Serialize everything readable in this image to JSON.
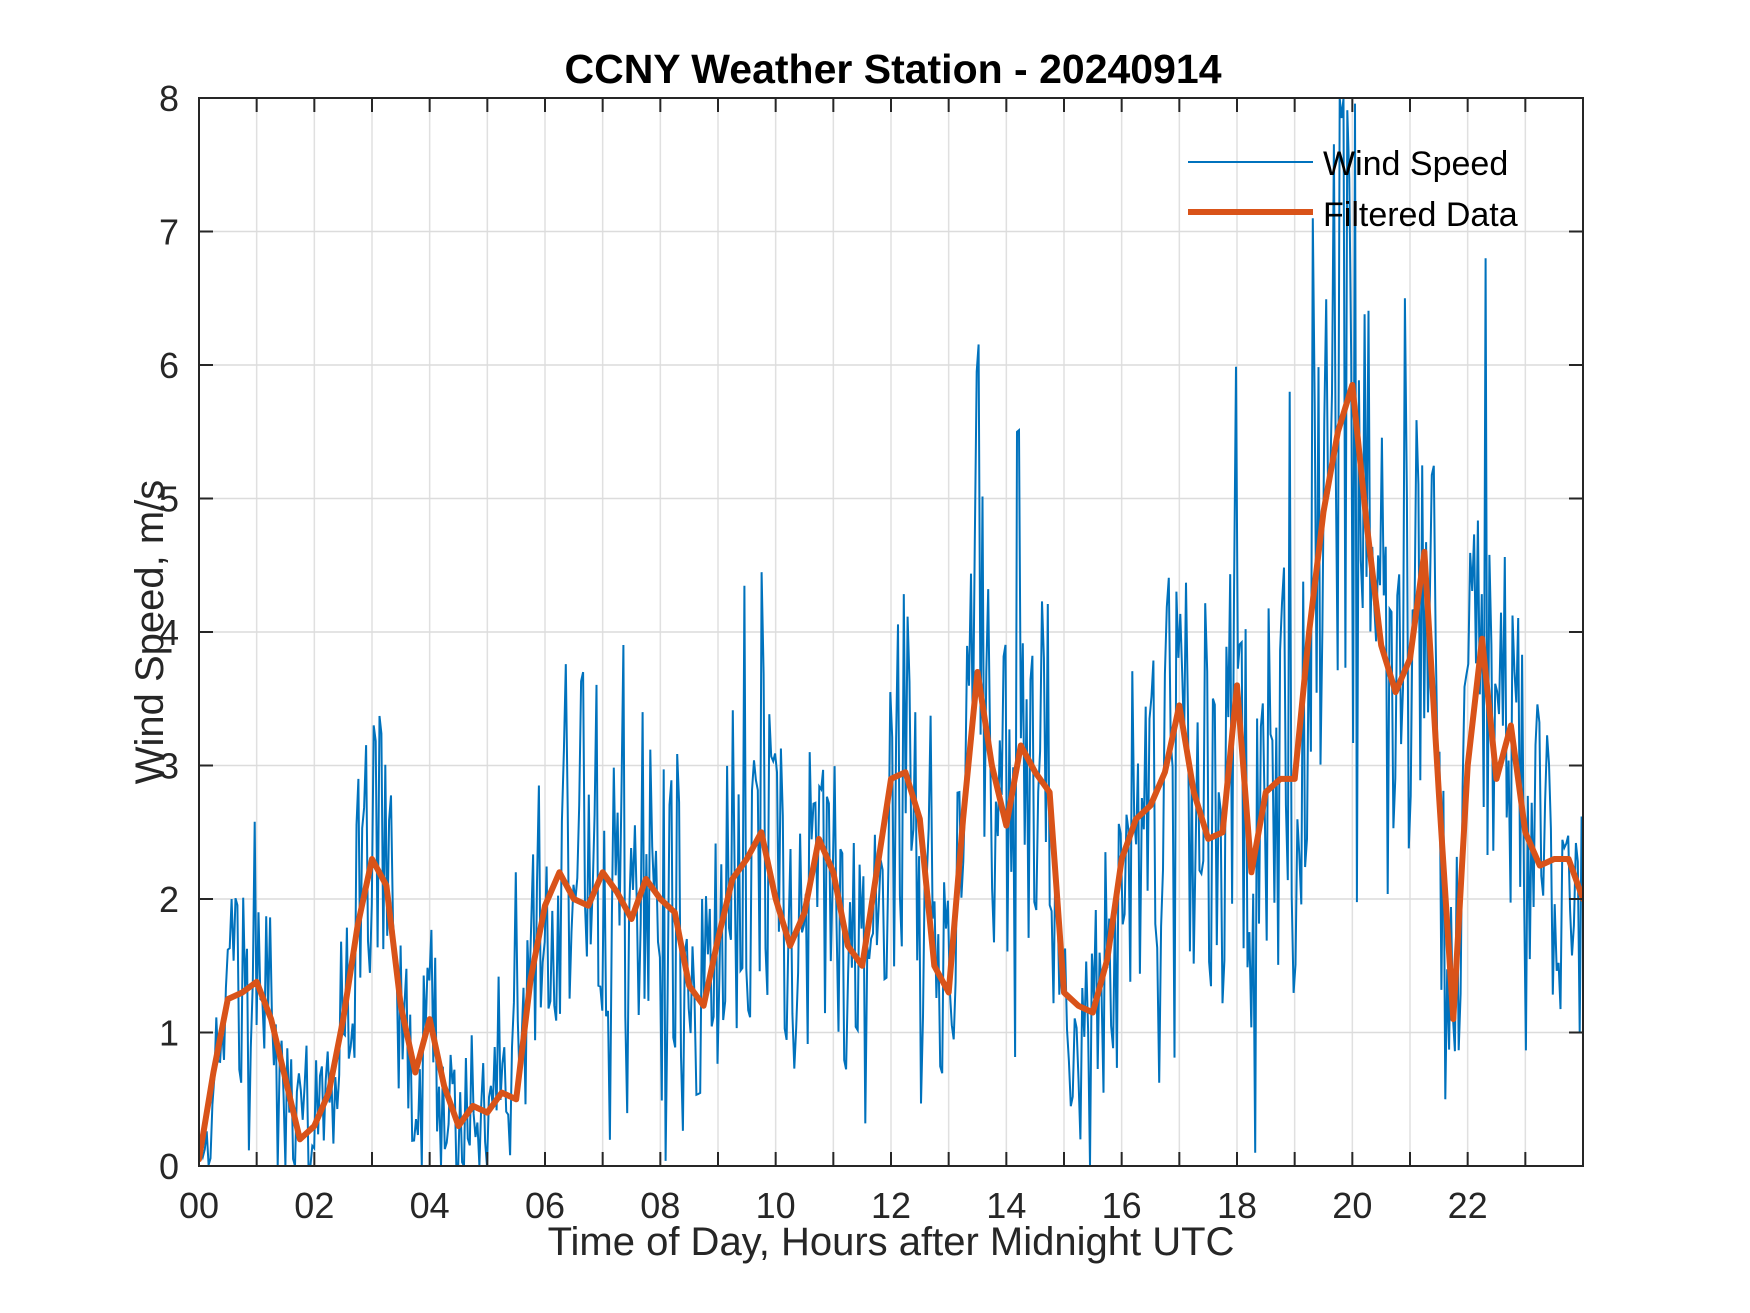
{
  "chart_data": {
    "type": "line",
    "title": "CCNY Weather Station - 20240914",
    "xlabel": "Time of Day, Hours after Midnight UTC",
    "ylabel": "Wind Speed, m/s",
    "xlim": [
      0,
      24
    ],
    "ylim": [
      0,
      8
    ],
    "x_tick_values": [
      0,
      2,
      4,
      6,
      8,
      10,
      12,
      14,
      16,
      18,
      20,
      22
    ],
    "x_tick_labels": [
      "00",
      "02",
      "04",
      "06",
      "08",
      "10",
      "12",
      "14",
      "16",
      "18",
      "20",
      "22"
    ],
    "x_minor_ticks_every": 1,
    "y_tick_values": [
      0,
      1,
      2,
      3,
      4,
      5,
      6,
      7,
      8
    ],
    "y_tick_labels": [
      "0",
      "1",
      "2",
      "3",
      "4",
      "5",
      "6",
      "7",
      "8"
    ],
    "grid": true,
    "legend": {
      "placement": "top-right",
      "entries": [
        "Wind Speed",
        "Filtered Data"
      ]
    },
    "series": [
      {
        "name": "Wind Speed",
        "color": "#0072BD",
        "note": "raw 1-minute-ish samples, high variance around filtered trend",
        "x_step_hours": 0.0333,
        "envelope_hint": "values range roughly 0 to 7.85; peak ~7.85 near hour 20",
        "notable_points": [
          {
            "x": 0.0,
            "y": 0.1
          },
          {
            "x": 0.55,
            "y": 2.0
          },
          {
            "x": 1.5,
            "y": 0.0
          },
          {
            "x": 2.75,
            "y": 2.9
          },
          {
            "x": 3.85,
            "y": 0.0
          },
          {
            "x": 5.5,
            "y": 2.2
          },
          {
            "x": 5.9,
            "y": 2.85
          },
          {
            "x": 7.7,
            "y": 3.4
          },
          {
            "x": 10.6,
            "y": 3.1
          },
          {
            "x": 12.0,
            "y": 3.55
          },
          {
            "x": 13.5,
            "y": 5.95
          },
          {
            "x": 14.2,
            "y": 5.5
          },
          {
            "x": 15.3,
            "y": 0.2
          },
          {
            "x": 18.3,
            "y": 0.1
          },
          {
            "x": 18.9,
            "y": 5.8
          },
          {
            "x": 19.3,
            "y": 7.1
          },
          {
            "x": 19.8,
            "y": 7.85
          },
          {
            "x": 20.9,
            "y": 6.5
          },
          {
            "x": 21.6,
            "y": 0.5
          },
          {
            "x": 22.3,
            "y": 6.8
          },
          {
            "x": 23.95,
            "y": 1.0
          }
        ]
      },
      {
        "name": "Filtered Data",
        "color": "#D95319",
        "x": [
          0.0,
          0.25,
          0.5,
          0.75,
          1.0,
          1.25,
          1.5,
          1.75,
          2.0,
          2.25,
          2.5,
          2.75,
          3.0,
          3.25,
          3.5,
          3.75,
          4.0,
          4.25,
          4.5,
          4.75,
          5.0,
          5.25,
          5.5,
          5.75,
          6.0,
          6.25,
          6.5,
          6.75,
          7.0,
          7.25,
          7.5,
          7.75,
          8.0,
          8.25,
          8.5,
          8.75,
          9.0,
          9.25,
          9.5,
          9.75,
          10.0,
          10.25,
          10.5,
          10.75,
          11.0,
          11.25,
          11.5,
          11.75,
          12.0,
          12.25,
          12.5,
          12.75,
          13.0,
          13.25,
          13.5,
          13.75,
          14.0,
          14.25,
          14.5,
          14.75,
          15.0,
          15.25,
          15.5,
          15.75,
          16.0,
          16.25,
          16.5,
          16.75,
          17.0,
          17.25,
          17.5,
          17.75,
          18.0,
          18.25,
          18.5,
          18.75,
          19.0,
          19.25,
          19.5,
          19.75,
          20.0,
          20.25,
          20.5,
          20.75,
          21.0,
          21.25,
          21.5,
          21.75,
          22.0,
          22.25,
          22.5,
          22.75,
          23.0,
          23.25,
          23.5,
          23.75,
          24.0
        ],
        "y": [
          0.05,
          0.7,
          1.25,
          1.3,
          1.38,
          1.1,
          0.65,
          0.2,
          0.3,
          0.55,
          1.1,
          1.8,
          2.3,
          2.1,
          1.2,
          0.7,
          1.1,
          0.6,
          0.3,
          0.45,
          0.4,
          0.55,
          0.5,
          1.4,
          1.95,
          2.2,
          2.0,
          1.95,
          2.2,
          2.05,
          1.85,
          2.15,
          2.0,
          1.9,
          1.35,
          1.2,
          1.7,
          2.15,
          2.3,
          2.5,
          2.0,
          1.65,
          1.9,
          2.45,
          2.2,
          1.65,
          1.5,
          2.2,
          2.9,
          2.95,
          2.6,
          1.5,
          1.3,
          2.6,
          3.7,
          3.0,
          2.55,
          3.15,
          2.95,
          2.8,
          1.3,
          1.2,
          1.15,
          1.55,
          2.3,
          2.6,
          2.7,
          2.95,
          3.45,
          2.8,
          2.45,
          2.5,
          3.6,
          2.2,
          2.8,
          2.9,
          2.9,
          4.0,
          4.9,
          5.5,
          5.85,
          4.8,
          3.9,
          3.55,
          3.8,
          4.6,
          2.8,
          1.1,
          3.0,
          3.95,
          2.9,
          3.3,
          2.5,
          2.25,
          2.3,
          2.3,
          2.0
        ]
      }
    ]
  }
}
